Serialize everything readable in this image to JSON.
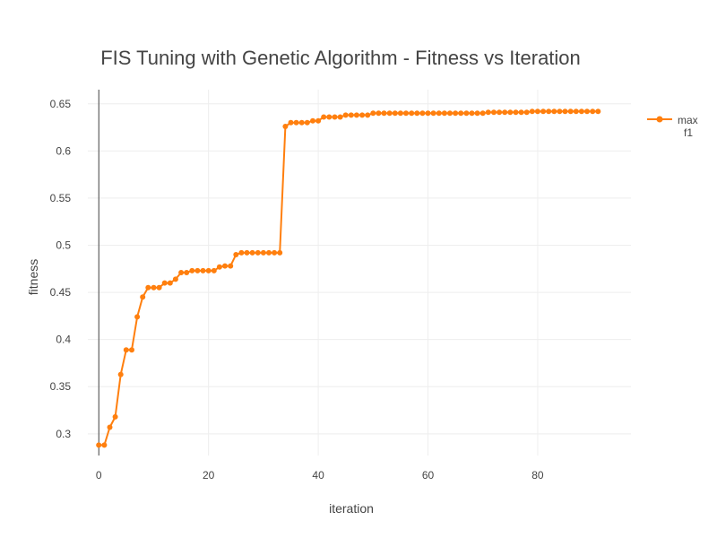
{
  "chart_data": {
    "type": "line",
    "title": "FIS Tuning with Genetic Algorithm - Fitness vs Iteration",
    "xlabel": "iteration",
    "ylabel": "fitness",
    "xlim": [
      -2,
      97
    ],
    "ylim": [
      0.277,
      0.665
    ],
    "xticks": [
      0,
      20,
      40,
      60,
      80
    ],
    "yticks": [
      0.3,
      0.35,
      0.4,
      0.45,
      0.5,
      0.55,
      0.6,
      0.65
    ],
    "ytick_labels": [
      "0.3",
      "0.35",
      "0.4",
      "0.45",
      "0.5",
      "0.55",
      "0.6",
      "0.65"
    ],
    "grid": true,
    "legend_position": "top-right",
    "series": [
      {
        "name": "max",
        "name_line2": "f1",
        "color": "#ff7f0e",
        "x": [
          0,
          1,
          2,
          3,
          4,
          5,
          6,
          7,
          8,
          9,
          10,
          11,
          12,
          13,
          14,
          15,
          16,
          17,
          18,
          19,
          20,
          21,
          22,
          23,
          24,
          25,
          26,
          27,
          28,
          29,
          30,
          31,
          32,
          33,
          34,
          35,
          36,
          37,
          38,
          39,
          40,
          41,
          42,
          43,
          44,
          45,
          46,
          47,
          48,
          49,
          50,
          51,
          52,
          53,
          54,
          55,
          56,
          57,
          58,
          59,
          60,
          61,
          62,
          63,
          64,
          65,
          66,
          67,
          68,
          69,
          70,
          71,
          72,
          73,
          74,
          75,
          76,
          77,
          78,
          79,
          80,
          81,
          82,
          83,
          84,
          85,
          86,
          87,
          88,
          89,
          90,
          91
        ],
        "y": [
          0.288,
          0.288,
          0.307,
          0.318,
          0.363,
          0.389,
          0.389,
          0.424,
          0.445,
          0.455,
          0.455,
          0.455,
          0.46,
          0.46,
          0.464,
          0.471,
          0.471,
          0.473,
          0.473,
          0.473,
          0.473,
          0.473,
          0.477,
          0.478,
          0.478,
          0.49,
          0.492,
          0.492,
          0.492,
          0.492,
          0.492,
          0.492,
          0.492,
          0.492,
          0.626,
          0.63,
          0.63,
          0.63,
          0.63,
          0.632,
          0.632,
          0.636,
          0.636,
          0.636,
          0.636,
          0.638,
          0.638,
          0.638,
          0.638,
          0.638,
          0.64,
          0.64,
          0.64,
          0.64,
          0.64,
          0.64,
          0.64,
          0.64,
          0.64,
          0.64,
          0.64,
          0.64,
          0.64,
          0.64,
          0.64,
          0.64,
          0.64,
          0.64,
          0.64,
          0.64,
          0.64,
          0.641,
          0.641,
          0.641,
          0.641,
          0.641,
          0.641,
          0.641,
          0.641,
          0.642,
          0.642,
          0.642,
          0.642,
          0.642,
          0.642,
          0.642,
          0.642,
          0.642,
          0.642,
          0.642,
          0.642,
          0.642
        ]
      }
    ]
  }
}
